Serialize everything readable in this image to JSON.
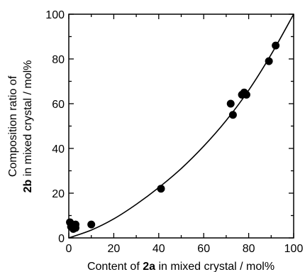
{
  "chart_data": {
    "type": "scatter",
    "xlabel": {
      "prefix": "Content of ",
      "bold": "2a",
      "suffix": " in mixed crystal / mol%"
    },
    "ylabel": {
      "line1": "Composition ratio of",
      "line2_bold": "2b",
      "line2_suffix": " in mixed crystal / mol%"
    },
    "xlim": [
      0,
      100
    ],
    "ylim": [
      0,
      100
    ],
    "xticks": [
      "0",
      "20",
      "40",
      "60",
      "80",
      "100"
    ],
    "yticks": [
      "0",
      "20",
      "40",
      "60",
      "80",
      "100"
    ],
    "grid": false,
    "legend": "none",
    "colors": {
      "marker": "#000000",
      "line": "#000000"
    },
    "series": [
      {
        "values": [
          {
            "x": 0.5,
            "y": 7
          },
          {
            "x": 1,
            "y": 5
          },
          {
            "x": 2,
            "y": 4
          },
          {
            "x": 3,
            "y": 6
          },
          {
            "x": 3,
            "y": 4.5
          },
          {
            "x": 10,
            "y": 6
          },
          {
            "x": 41,
            "y": 22
          },
          {
            "x": 72,
            "y": 60
          },
          {
            "x": 73,
            "y": 55
          },
          {
            "x": 77,
            "y": 64
          },
          {
            "x": 78,
            "y": 65
          },
          {
            "x": 79,
            "y": 64
          },
          {
            "x": 89,
            "y": 79
          },
          {
            "x": 92,
            "y": 86
          }
        ]
      }
    ],
    "fit_curve": {
      "points": [
        {
          "x": 0,
          "y": 0
        },
        {
          "x": 10,
          "y": 3.5
        },
        {
          "x": 20,
          "y": 8.5
        },
        {
          "x": 30,
          "y": 15
        },
        {
          "x": 40,
          "y": 22.5
        },
        {
          "x": 50,
          "y": 31
        },
        {
          "x": 60,
          "y": 41
        },
        {
          "x": 70,
          "y": 52.5
        },
        {
          "x": 80,
          "y": 66
        },
        {
          "x": 90,
          "y": 82
        },
        {
          "x": 100,
          "y": 100
        }
      ]
    }
  }
}
